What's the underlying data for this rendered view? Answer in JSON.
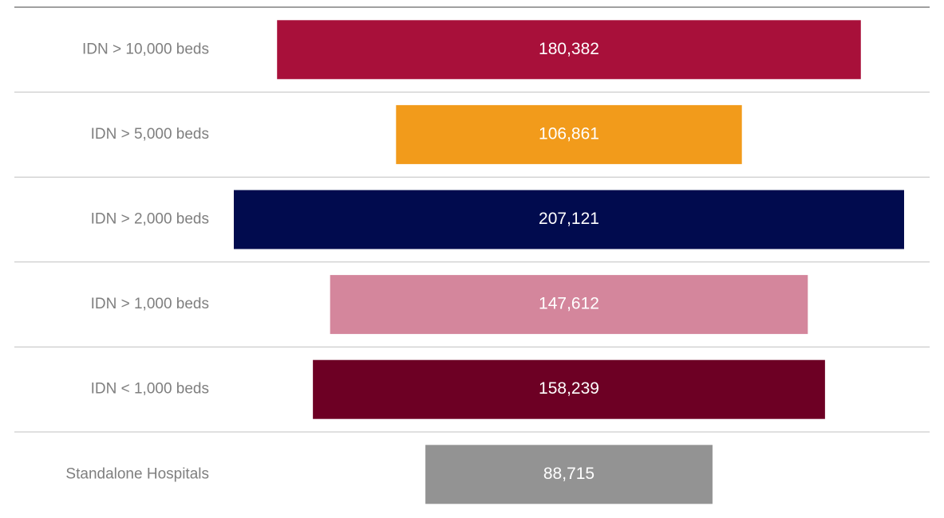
{
  "chart_data": {
    "type": "funnel",
    "categories": [
      "IDN > 10,000 beds",
      "IDN > 5,000 beds",
      "IDN > 2,000 beds",
      "IDN > 1,000 beds",
      "IDN < 1,000 beds",
      "Standalone Hospitals"
    ],
    "values": [
      180382,
      106861,
      207121,
      147612,
      158239,
      88715
    ],
    "value_labels": [
      "180,382",
      "106,861",
      "207,121",
      "147,612",
      "158,239",
      "88,715"
    ],
    "colors": [
      "#a8103a",
      "#f29b1b",
      "#010b4e",
      "#d4869c",
      "#6d0024",
      "#939393"
    ]
  }
}
